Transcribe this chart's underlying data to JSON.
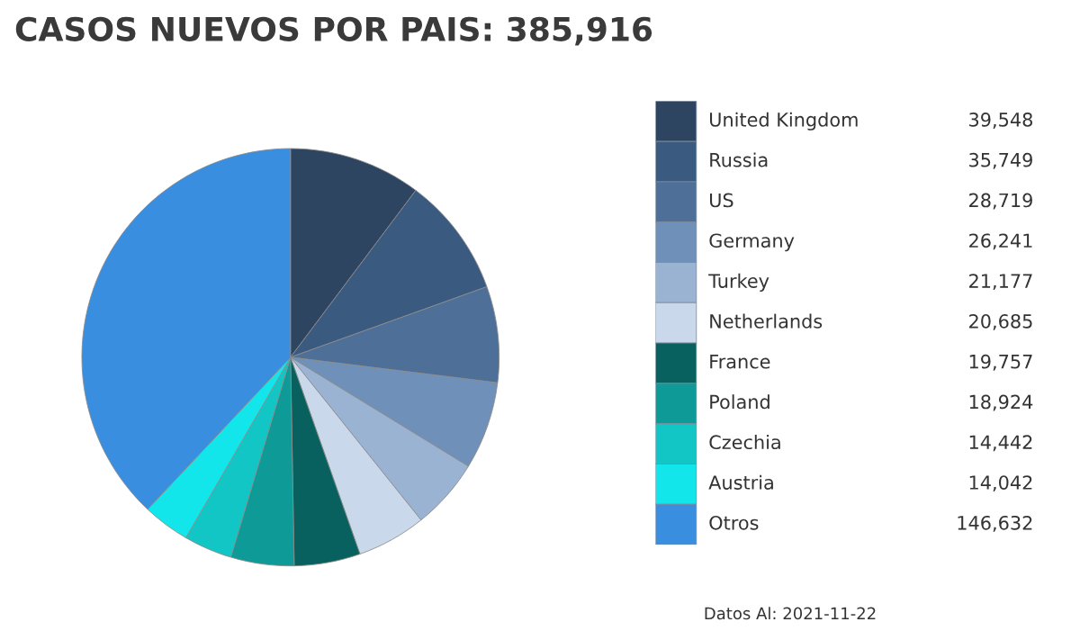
{
  "chart_data": {
    "type": "pie",
    "title": "CASOS NUEVOS POR PAIS: 385,916",
    "categories": [
      "United Kingdom",
      "Russia",
      "US",
      "Germany",
      "Turkey",
      "Netherlands",
      "France",
      "Poland",
      "Czechia",
      "Austria",
      "Otros"
    ],
    "values": [
      39548,
      35749,
      28719,
      26241,
      21177,
      20685,
      19757,
      18924,
      14442,
      14042,
      146632
    ],
    "colors": [
      "#2e4562",
      "#3a5a80",
      "#4d6f98",
      "#6f90b8",
      "#9ab3d3",
      "#c9d8ea",
      "#08615e",
      "#0e9b97",
      "#12c6c6",
      "#13e6ea",
      "#3a8ee0"
    ],
    "value_labels": [
      "39,548",
      "35,749",
      "28,719",
      "26,241",
      "21,177",
      "20,685",
      "19,757",
      "18,924",
      "14,442",
      "14,042",
      "146,632"
    ],
    "legend": "right",
    "annotations": [
      "Datos Al: 2021-11-22"
    ]
  }
}
